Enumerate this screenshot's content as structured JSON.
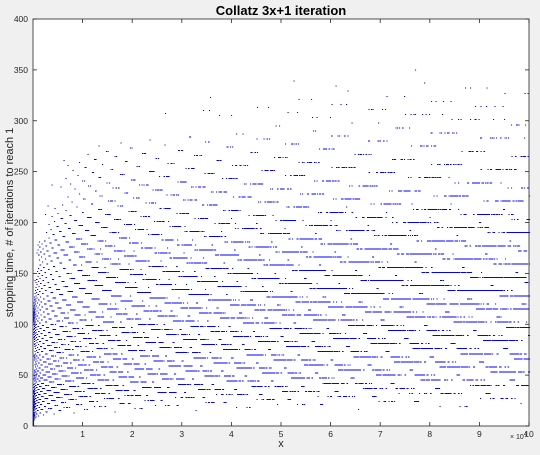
{
  "chart_data": {
    "type": "scatter",
    "title": "Collatz 3x+1 iteration",
    "xlabel": "x",
    "ylabel": "stopping time, # of iterations to reach 1",
    "xlim": [
      0,
      100000
    ],
    "ylim": [
      0,
      400
    ],
    "x_ticks": [
      10000,
      20000,
      30000,
      40000,
      50000,
      60000,
      70000,
      80000,
      90000,
      100000
    ],
    "x_tick_labels": [
      "1",
      "2",
      "3",
      "4",
      "5",
      "6",
      "7",
      "8",
      "9",
      "10"
    ],
    "x_exponent_label": "× 10",
    "x_exponent": "4",
    "y_ticks": [
      0,
      50,
      100,
      150,
      200,
      250,
      300,
      350,
      400
    ],
    "y_tick_labels": [
      "0",
      "50",
      "100",
      "150",
      "200",
      "250",
      "300",
      "350",
      "400"
    ],
    "grid": false,
    "legend": false,
    "series": [
      {
        "marker_color": "#0000ff",
        "x_range": [
          1,
          100000
        ],
        "y_function": "number of Collatz 3x+1 steps for x to reach 1",
        "max_point": {
          "x": 77031,
          "y": 350
        }
      }
    ]
  }
}
